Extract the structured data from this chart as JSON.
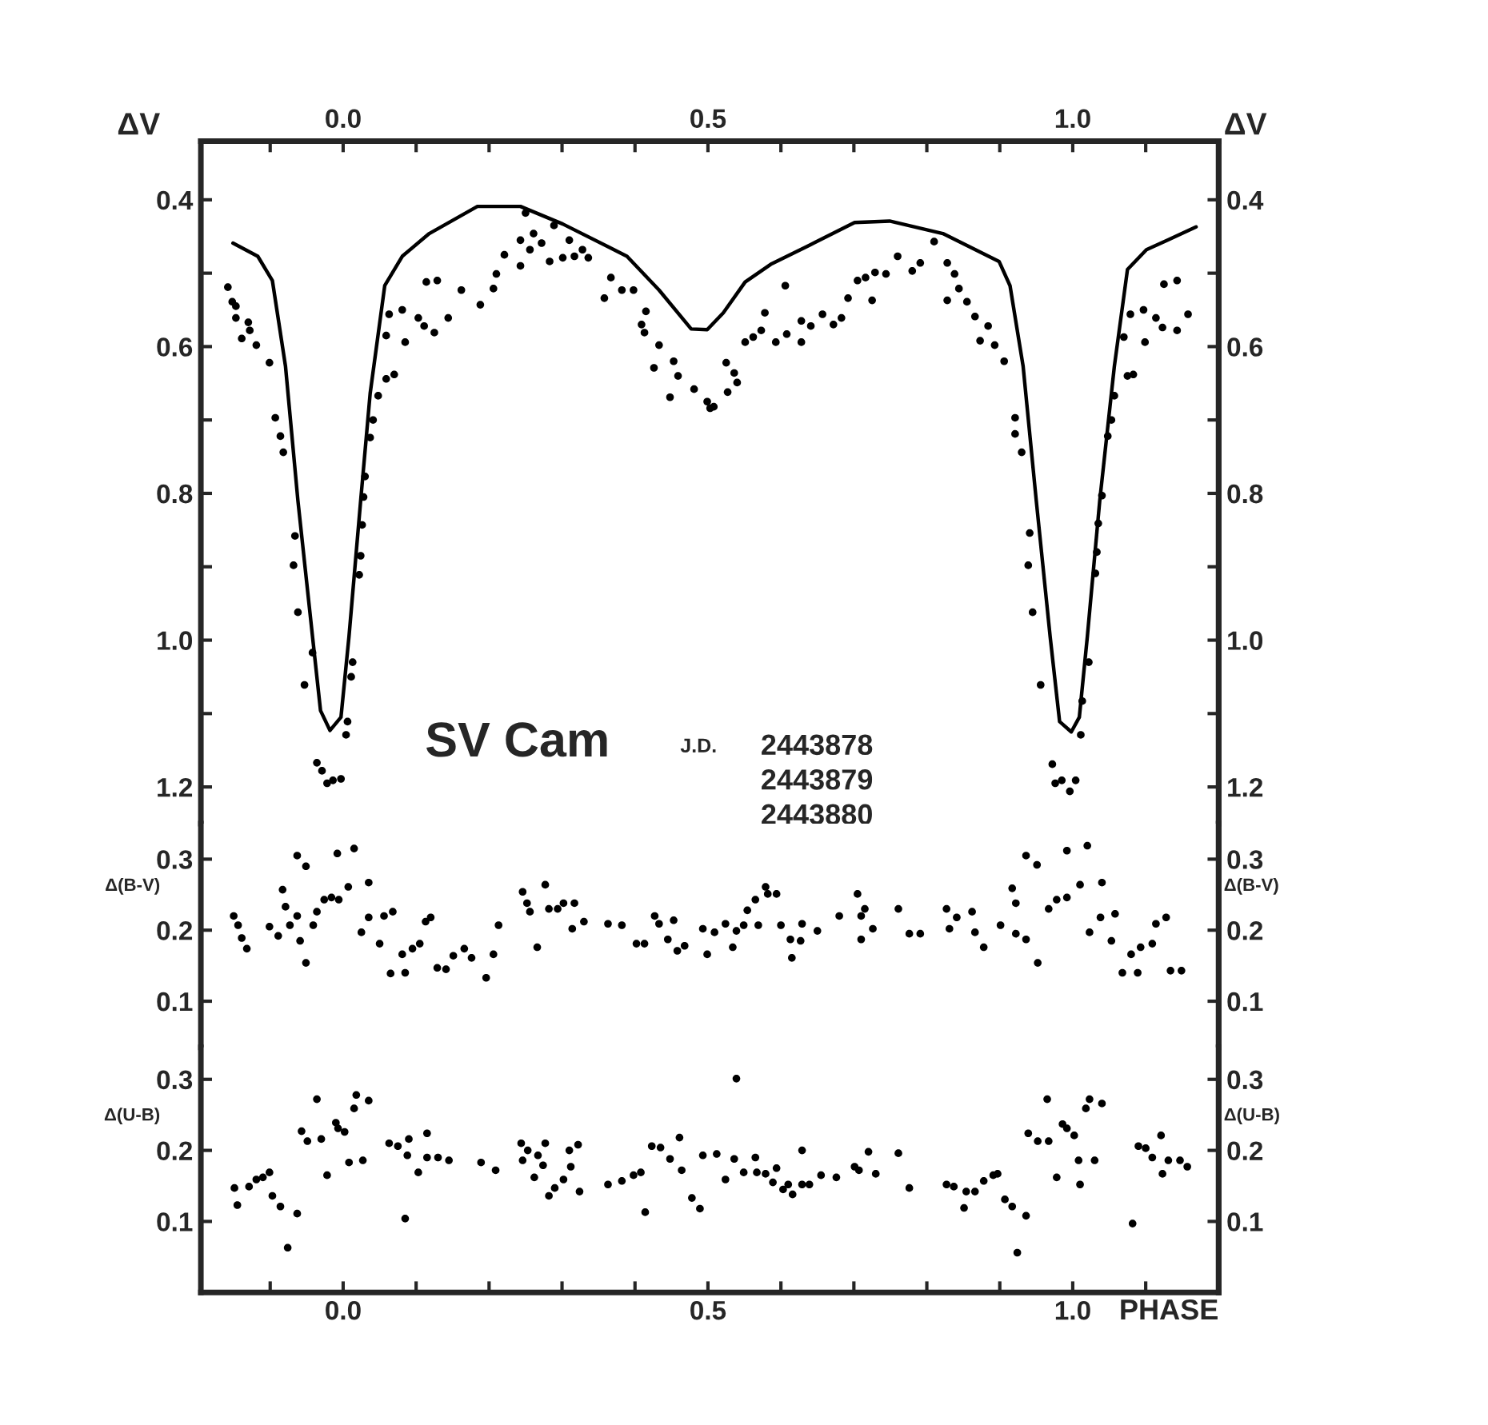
{
  "chart_data": [
    {
      "type": "scatter",
      "ylabel": "ΔV",
      "y2label": "ΔV",
      "xlim": [
        -0.195,
        1.2
      ],
      "xticks": [
        {
          "value": -0.1,
          "label": null
        },
        {
          "value": 0.0,
          "label": "0.0"
        },
        {
          "value": 0.1,
          "label": null
        },
        {
          "value": 0.2,
          "label": null
        },
        {
          "value": 0.3,
          "label": null
        },
        {
          "value": 0.4,
          "label": null
        },
        {
          "value": 0.5,
          "label": "0.5"
        },
        {
          "value": 0.6,
          "label": null
        },
        {
          "value": 0.7,
          "label": null
        },
        {
          "value": 0.8,
          "label": null
        },
        {
          "value": 0.9,
          "label": null
        },
        {
          "value": 1.0,
          "label": "1.0"
        },
        {
          "value": 1.1,
          "label": null
        }
      ],
      "ylim": [
        1.25,
        0.32
      ],
      "yticks": [
        0.4,
        {
          "value": 0.5,
          "label": null
        },
        0.6,
        {
          "value": 0.7,
          "label": null
        },
        0.8,
        {
          "value": 0.9,
          "label": null
        },
        {
          "value": 1.0,
          "label": "1.0"
        },
        {
          "value": 1.1,
          "label": null
        },
        1.2
      ],
      "y2lim": [
        1.25,
        0.32
      ],
      "y2ticks": [
        0.4,
        {
          "value": 0.5,
          "label": null
        },
        0.6,
        {
          "value": 0.7,
          "label": null
        },
        0.8,
        {
          "value": 0.9,
          "label": null
        },
        {
          "value": 1.0,
          "label": "1.0"
        },
        {
          "value": 1.1,
          "label": null
        },
        1.2
      ],
      "annotations": [
        "SV Cam",
        "J.D.",
        "2443878",
        "2443879",
        "2443880"
      ],
      "grid": false,
      "series": [
        {
          "type": "line",
          "color": "#000000",
          "line_style": "solid",
          "marker": "none",
          "x": [
            -0.151,
            -0.117,
            -0.097,
            -0.079,
            -0.062,
            -0.042,
            -0.031,
            -0.018,
            -0.003,
            0.008,
            0.024,
            0.037,
            0.057,
            0.081,
            0.118,
            0.184,
            0.243,
            0.301,
            0.389,
            0.433,
            0.477,
            0.499,
            0.521,
            0.551,
            0.586,
            0.639,
            0.701,
            0.749,
            0.822,
            0.899,
            0.914,
            0.932,
            0.95,
            0.969,
            0.982,
            0.998,
            1.009,
            1.02,
            1.037,
            1.057,
            1.075,
            1.101,
            1.13,
            1.169
          ],
          "values": [
            0.459,
            0.477,
            0.51,
            0.627,
            0.81,
            0.995,
            1.096,
            1.123,
            1.105,
            0.995,
            0.81,
            0.664,
            0.517,
            0.477,
            0.446,
            0.409,
            0.409,
            0.433,
            0.477,
            0.523,
            0.576,
            0.577,
            0.554,
            0.512,
            0.488,
            0.462,
            0.431,
            0.429,
            0.446,
            0.484,
            0.517,
            0.627,
            0.81,
            0.995,
            1.111,
            1.125,
            1.105,
            0.995,
            0.81,
            0.627,
            0.495,
            0.468,
            0.455,
            0.437
          ]
        },
        {
          "type": "scatter",
          "color": "#000000",
          "marker": "circle",
          "x": [
            -0.158,
            -0.152,
            -0.147,
            -0.147,
            -0.139,
            -0.13,
            -0.128,
            -0.119,
            -0.101,
            -0.093,
            -0.086,
            -0.082,
            -0.066,
            -0.068,
            -0.062,
            -0.042,
            -0.053,
            -0.036,
            -0.029,
            -0.022,
            -0.014,
            -0.003,
            0.004,
            0.006,
            0.011,
            0.013,
            0.022,
            0.024,
            0.026,
            0.028,
            0.03,
            0.037,
            0.041,
            0.048,
            0.059,
            0.07,
            0.059,
            0.063,
            0.081,
            0.085,
            0.103,
            0.111,
            0.125,
            0.114,
            0.129,
            0.144,
            0.162,
            0.188,
            0.206,
            0.21,
            0.221,
            0.243,
            0.243,
            0.261,
            0.256,
            0.272,
            0.25,
            0.289,
            0.283,
            0.301,
            0.31,
            0.317,
            0.328,
            0.336,
            0.358,
            0.367,
            0.382,
            0.398,
            0.415,
            0.409,
            0.413,
            0.433,
            0.426,
            0.453,
            0.459,
            0.448,
            0.481,
            0.499,
            0.503,
            0.508,
            0.527,
            0.525,
            0.536,
            0.54,
            0.551,
            0.562,
            0.573,
            0.578,
            0.593,
            0.606,
            0.608,
            0.628,
            0.628,
            0.641,
            0.657,
            0.672,
            0.683,
            0.692,
            0.705,
            0.716,
            0.725,
            0.729,
            0.744,
            0.76,
            0.78,
            0.791,
            0.81,
            0.828,
            0.828,
            0.838,
            0.844,
            0.855,
            0.866,
            0.884,
            0.873,
            0.893,
            0.906,
            0.921,
            0.921,
            0.93,
            0.941,
            0.939,
            0.945,
            0.956,
            0.972,
            0.976,
            0.985,
            0.996,
            1.004,
            1.011,
            1.013,
            1.022,
            1.031,
            1.033,
            1.035,
            1.04,
            1.048,
            1.053,
            1.057,
            1.075,
            1.083,
            1.07,
            1.079,
            1.097,
            1.099,
            1.114,
            1.123,
            1.143,
            1.125,
            1.143,
            1.158
          ],
          "values": [
            0.519,
            0.539,
            0.545,
            0.561,
            0.589,
            0.567,
            0.578,
            0.598,
            0.622,
            0.697,
            0.722,
            0.744,
            0.858,
            0.898,
            0.962,
            1.017,
            1.061,
            1.167,
            1.178,
            1.195,
            1.191,
            1.189,
            1.129,
            1.111,
            1.05,
            1.03,
            0.911,
            0.885,
            0.843,
            0.805,
            0.777,
            0.724,
            0.7,
            0.667,
            0.644,
            0.638,
            0.585,
            0.556,
            0.55,
            0.594,
            0.561,
            0.572,
            0.581,
            0.512,
            0.51,
            0.561,
            0.523,
            0.543,
            0.521,
            0.501,
            0.475,
            0.49,
            0.455,
            0.446,
            0.468,
            0.459,
            0.418,
            0.435,
            0.484,
            0.479,
            0.455,
            0.477,
            0.468,
            0.479,
            0.534,
            0.506,
            0.523,
            0.523,
            0.552,
            0.57,
            0.581,
            0.598,
            0.629,
            0.62,
            0.64,
            0.669,
            0.658,
            0.675,
            0.684,
            0.682,
            0.662,
            0.622,
            0.636,
            0.649,
            0.594,
            0.587,
            0.578,
            0.554,
            0.594,
            0.517,
            0.583,
            0.565,
            0.594,
            0.572,
            0.556,
            0.57,
            0.561,
            0.534,
            0.51,
            0.506,
            0.537,
            0.499,
            0.501,
            0.477,
            0.497,
            0.486,
            0.457,
            0.486,
            0.537,
            0.501,
            0.521,
            0.539,
            0.559,
            0.572,
            0.592,
            0.598,
            0.62,
            0.697,
            0.719,
            0.744,
            0.854,
            0.898,
            0.962,
            1.061,
            1.169,
            1.195,
            1.191,
            1.206,
            1.191,
            1.129,
            1.083,
            1.03,
            0.909,
            0.88,
            0.841,
            0.803,
            0.722,
            0.7,
            0.667,
            0.64,
            0.638,
            0.587,
            0.556,
            0.55,
            0.594,
            0.561,
            0.574,
            0.578,
            0.515,
            0.51,
            0.556
          ]
        }
      ]
    },
    {
      "type": "scatter",
      "ylabel": "Δ(B-V)",
      "y2label": "Δ(B-V)",
      "xlim": [
        -0.195,
        1.2
      ],
      "tick_labels": "y",
      "ylim": [
        0.035,
        0.35
      ],
      "yticks": [
        0.1,
        0.2,
        0.3
      ],
      "y2lim": [
        0.035,
        0.35
      ],
      "y2ticks": [
        0.1,
        0.2,
        0.3
      ],
      "grid": false,
      "series": [
        {
          "type": "scatter",
          "color": "#000000",
          "marker": "circle",
          "x": [
            -0.15,
            -0.144,
            -0.139,
            -0.132,
            -0.101,
            -0.089,
            -0.083,
            -0.079,
            -0.073,
            -0.063,
            -0.063,
            -0.051,
            -0.051,
            -0.059,
            -0.041,
            -0.036,
            -0.026,
            -0.016,
            -0.008,
            -0.006,
            0.007,
            0.015,
            0.035,
            0.025,
            0.035,
            0.05,
            0.056,
            0.068,
            0.065,
            0.085,
            0.081,
            0.095,
            0.105,
            0.113,
            0.12,
            0.129,
            0.141,
            0.151,
            0.166,
            0.176,
            0.196,
            0.206,
            0.213,
            0.246,
            0.252,
            0.256,
            0.266,
            0.277,
            0.282,
            0.294,
            0.302,
            0.317,
            0.314,
            0.33,
            0.363,
            0.382,
            0.402,
            0.413,
            0.427,
            0.433,
            0.445,
            0.453,
            0.458,
            0.468,
            0.493,
            0.499,
            0.509,
            0.524,
            0.534,
            0.539,
            0.549,
            0.554,
            0.565,
            0.569,
            0.579,
            0.582,
            0.594,
            0.6,
            0.613,
            0.615,
            0.629,
            0.627,
            0.65,
            0.68,
            0.705,
            0.71,
            0.71,
            0.715,
            0.726,
            0.761,
            0.776,
            0.791,
            0.827,
            0.831,
            0.841,
            0.862,
            0.866,
            0.878,
            0.901,
            0.917,
            0.922,
            0.922,
            0.936,
            0.936,
            0.951,
            0.952,
            0.967,
            0.978,
            0.992,
            0.992,
            1.01,
            1.02,
            1.023,
            1.04,
            1.038,
            1.053,
            1.058,
            1.068,
            1.089,
            1.08,
            1.093,
            1.109,
            1.114,
            1.128,
            1.134,
            1.149
          ],
          "values": [
            0.22,
            0.207,
            0.189,
            0.174,
            0.205,
            0.192,
            0.257,
            0.233,
            0.207,
            0.22,
            0.305,
            0.29,
            0.154,
            0.185,
            0.207,
            0.226,
            0.243,
            0.246,
            0.308,
            0.243,
            0.261,
            0.315,
            0.267,
            0.197,
            0.218,
            0.181,
            0.22,
            0.226,
            0.139,
            0.14,
            0.166,
            0.174,
            0.181,
            0.212,
            0.218,
            0.147,
            0.145,
            0.164,
            0.174,
            0.161,
            0.133,
            0.166,
            0.207,
            0.254,
            0.238,
            0.226,
            0.176,
            0.264,
            0.23,
            0.23,
            0.238,
            0.238,
            0.202,
            0.212,
            0.209,
            0.207,
            0.181,
            0.181,
            0.22,
            0.209,
            0.187,
            0.214,
            0.171,
            0.178,
            0.202,
            0.166,
            0.197,
            0.209,
            0.176,
            0.199,
            0.207,
            0.228,
            0.243,
            0.207,
            0.261,
            0.251,
            0.251,
            0.207,
            0.187,
            0.161,
            0.209,
            0.185,
            0.199,
            0.22,
            0.251,
            0.22,
            0.187,
            0.23,
            0.202,
            0.23,
            0.195,
            0.195,
            0.23,
            0.202,
            0.218,
            0.226,
            0.197,
            0.176,
            0.207,
            0.259,
            0.238,
            0.195,
            0.187,
            0.305,
            0.292,
            0.154,
            0.23,
            0.243,
            0.246,
            0.312,
            0.264,
            0.319,
            0.197,
            0.267,
            0.218,
            0.185,
            0.223,
            0.14,
            0.14,
            0.166,
            0.176,
            0.181,
            0.209,
            0.218,
            0.143,
            0.143
          ]
        }
      ]
    },
    {
      "type": "scatter",
      "ylabel": "Δ(U-B)",
      "y2label": "Δ(U-B)",
      "xlabel": "PHASE",
      "xlim": [
        -0.195,
        1.2
      ],
      "xticks": [
        {
          "value": -0.1,
          "label": null
        },
        {
          "value": 0.0,
          "label": "0.0"
        },
        {
          "value": 0.1,
          "label": null
        },
        {
          "value": 0.2,
          "label": null
        },
        {
          "value": 0.3,
          "label": null
        },
        {
          "value": 0.4,
          "label": null
        },
        {
          "value": 0.5,
          "label": "0.5"
        },
        {
          "value": 0.6,
          "label": null
        },
        {
          "value": 0.7,
          "label": null
        },
        {
          "value": 0.8,
          "label": null
        },
        {
          "value": 0.9,
          "label": null
        },
        {
          "value": 1.0,
          "label": "1.0"
        },
        {
          "value": 1.1,
          "label": null
        }
      ],
      "ylim": [
        0.0,
        0.345
      ],
      "yticks": [
        0.1,
        0.2,
        0.3
      ],
      "y2lim": [
        0.0,
        0.345
      ],
      "y2ticks": [
        0.1,
        0.2,
        0.3
      ],
      "grid": false,
      "series": [
        {
          "type": "scatter",
          "color": "#000000",
          "marker": "circle",
          "x": [
            -0.149,
            -0.145,
            -0.129,
            -0.119,
            -0.11,
            -0.101,
            -0.097,
            -0.086,
            -0.076,
            -0.063,
            -0.057,
            -0.049,
            -0.036,
            -0.03,
            -0.022,
            -0.01,
            -0.007,
            0.002,
            0.008,
            0.015,
            0.018,
            0.027,
            0.035,
            0.063,
            0.075,
            0.085,
            0.09,
            0.088,
            0.103,
            0.115,
            0.115,
            0.13,
            0.145,
            0.189,
            0.209,
            0.244,
            0.246,
            0.253,
            0.262,
            0.267,
            0.274,
            0.277,
            0.282,
            0.29,
            0.302,
            0.31,
            0.312,
            0.322,
            0.324,
            0.363,
            0.382,
            0.398,
            0.408,
            0.414,
            0.423,
            0.435,
            0.448,
            0.461,
            0.464,
            0.478,
            0.489,
            0.493,
            0.512,
            0.524,
            0.539,
            0.536,
            0.549,
            0.565,
            0.567,
            0.579,
            0.589,
            0.594,
            0.603,
            0.61,
            0.616,
            0.629,
            0.629,
            0.639,
            0.655,
            0.676,
            0.701,
            0.707,
            0.72,
            0.73,
            0.761,
            0.776,
            0.827,
            0.837,
            0.851,
            0.854,
            0.866,
            0.878,
            0.891,
            0.897,
            0.907,
            0.917,
            0.924,
            0.936,
            0.939,
            0.952,
            0.965,
            0.967,
            0.978,
            0.986,
            0.992,
            1.002,
            1.008,
            1.01,
            1.018,
            1.023,
            1.03,
            1.04,
            1.082,
            1.09,
            1.1,
            1.109,
            1.121,
            1.123,
            1.131,
            1.147,
            1.157
          ],
          "values": [
            0.147,
            0.123,
            0.149,
            0.159,
            0.162,
            0.169,
            0.136,
            0.121,
            0.063,
            0.111,
            0.227,
            0.213,
            0.272,
            0.216,
            0.165,
            0.239,
            0.231,
            0.226,
            0.183,
            0.259,
            0.278,
            0.186,
            0.27,
            0.21,
            0.206,
            0.104,
            0.216,
            0.193,
            0.169,
            0.224,
            0.19,
            0.19,
            0.186,
            0.183,
            0.172,
            0.21,
            0.186,
            0.2,
            0.162,
            0.193,
            0.179,
            0.21,
            0.136,
            0.147,
            0.159,
            0.2,
            0.177,
            0.208,
            0.142,
            0.152,
            0.157,
            0.165,
            0.169,
            0.113,
            0.206,
            0.204,
            0.188,
            0.218,
            0.172,
            0.133,
            0.118,
            0.193,
            0.195,
            0.159,
            0.301,
            0.188,
            0.169,
            0.19,
            0.169,
            0.167,
            0.155,
            0.175,
            0.145,
            0.152,
            0.138,
            0.2,
            0.152,
            0.152,
            0.165,
            0.162,
            0.177,
            0.172,
            0.198,
            0.167,
            0.196,
            0.147,
            0.152,
            0.149,
            0.119,
            0.142,
            0.142,
            0.157,
            0.165,
            0.167,
            0.131,
            0.121,
            0.056,
            0.108,
            0.224,
            0.213,
            0.272,
            0.213,
            0.162,
            0.237,
            0.231,
            0.221,
            0.186,
            0.152,
            0.259,
            0.272,
            0.186,
            0.266,
            0.097,
            0.206,
            0.203,
            0.19,
            0.221,
            0.167,
            0.186,
            0.186,
            0.177
          ]
        }
      ]
    }
  ]
}
